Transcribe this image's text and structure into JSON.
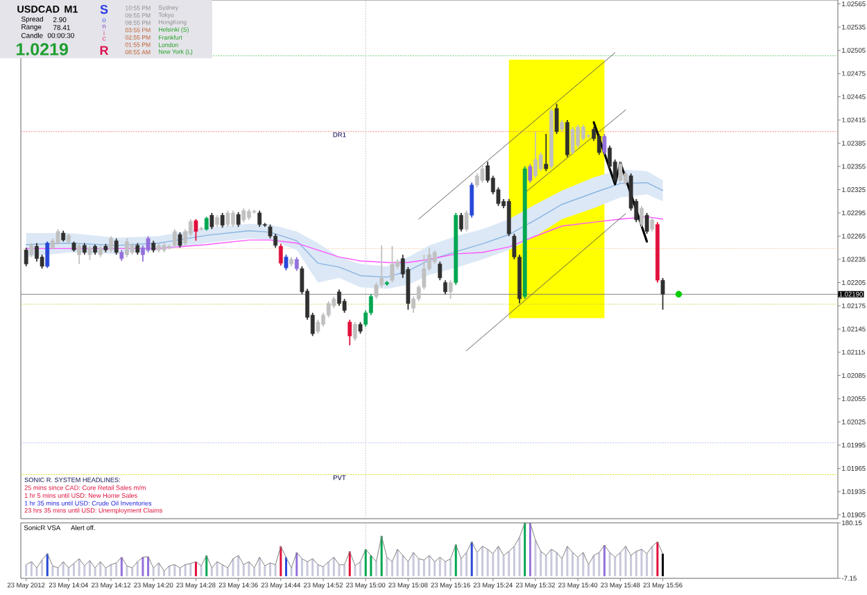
{
  "chart_data": [
    {
      "type": "candlestick",
      "x": [
        "2012-05-23T13:56",
        "2012-05-23T13:57",
        "2012-05-23T13:58",
        "2012-05-23T13:59",
        "2012-05-23T14:00",
        "2012-05-23T14:01",
        "2012-05-23T14:02",
        "2012-05-23T14:03",
        "2012-05-23T14:04",
        "2012-05-23T14:05",
        "2012-05-23T14:06",
        "2012-05-23T14:07",
        "2012-05-23T14:08",
        "2012-05-23T14:09",
        "2012-05-23T14:10",
        "2012-05-23T14:11",
        "2012-05-23T14:12",
        "2012-05-23T14:13",
        "2012-05-23T14:14",
        "2012-05-23T14:15",
        "2012-05-23T14:16",
        "2012-05-23T14:17",
        "2012-05-23T14:18",
        "2012-05-23T14:19",
        "2012-05-23T14:20",
        "2012-05-23T14:21",
        "2012-05-23T14:22",
        "2012-05-23T14:23",
        "2012-05-23T14:24",
        "2012-05-23T14:25",
        "2012-05-23T14:26",
        "2012-05-23T14:27",
        "2012-05-23T14:28",
        "2012-05-23T14:29",
        "2012-05-23T14:30",
        "2012-05-23T14:31",
        "2012-05-23T14:32",
        "2012-05-23T14:33",
        "2012-05-23T14:34",
        "2012-05-23T14:35",
        "2012-05-23T14:36",
        "2012-05-23T14:37",
        "2012-05-23T14:38",
        "2012-05-23T14:39",
        "2012-05-23T14:40",
        "2012-05-23T14:41",
        "2012-05-23T14:42",
        "2012-05-23T14:43",
        "2012-05-23T14:44",
        "2012-05-23T14:45",
        "2012-05-23T14:46",
        "2012-05-23T14:47",
        "2012-05-23T14:48",
        "2012-05-23T14:49",
        "2012-05-23T14:50",
        "2012-05-23T14:51",
        "2012-05-23T14:52",
        "2012-05-23T14:53",
        "2012-05-23T14:54",
        "2012-05-23T14:55",
        "2012-05-23T14:56",
        "2012-05-23T14:57",
        "2012-05-23T14:58",
        "2012-05-23T14:59",
        "2012-05-23T15:00",
        "2012-05-23T15:01",
        "2012-05-23T15:02",
        "2012-05-23T15:03",
        "2012-05-23T15:04",
        "2012-05-23T15:05",
        "2012-05-23T15:06",
        "2012-05-23T15:07",
        "2012-05-23T15:08",
        "2012-05-23T15:09",
        "2012-05-23T15:10",
        "2012-05-23T15:11",
        "2012-05-23T15:12",
        "2012-05-23T15:13",
        "2012-05-23T15:14",
        "2012-05-23T15:15",
        "2012-05-23T15:16",
        "2012-05-23T15:17",
        "2012-05-23T15:18",
        "2012-05-23T15:19",
        "2012-05-23T15:20",
        "2012-05-23T15:21",
        "2012-05-23T15:22",
        "2012-05-23T15:23",
        "2012-05-23T15:24",
        "2012-05-23T15:25",
        "2012-05-23T15:26",
        "2012-05-23T15:27",
        "2012-05-23T15:28",
        "2012-05-23T15:29",
        "2012-05-23T15:30",
        "2012-05-23T15:31",
        "2012-05-23T15:32",
        "2012-05-23T15:33",
        "2012-05-23T15:34",
        "2012-05-23T15:35",
        "2012-05-23T15:36",
        "2012-05-23T15:37",
        "2012-05-23T15:38",
        "2012-05-23T15:39",
        "2012-05-23T15:40",
        "2012-05-23T15:41",
        "2012-05-23T15:42",
        "2012-05-23T15:43",
        "2012-05-23T15:44",
        "2012-05-23T15:45",
        "2012-05-23T15:46",
        "2012-05-23T15:47",
        "2012-05-23T15:48",
        "2012-05-23T15:49",
        "2012-05-23T15:50",
        "2012-05-23T15:51",
        "2012-05-23T15:52",
        "2012-05-23T15:53",
        "2012-05-23T15:54",
        "2012-05-23T15:55",
        "2012-05-23T15:56"
      ],
      "ohlc": [
        [
          1.02247,
          1.0225,
          1.02226,
          1.02229
        ],
        [
          1.02241,
          1.02256,
          1.02238,
          1.02253
        ],
        [
          1.02252,
          1.02256,
          1.02232,
          1.02236
        ],
        [
          1.02238,
          1.02241,
          1.02223,
          1.02226
        ],
        [
          1.02226,
          1.02258,
          1.02224,
          1.02256
        ],
        [
          1.0225,
          1.02262,
          1.02248,
          1.02259
        ],
        [
          1.02256,
          1.02274,
          1.02254,
          1.02271
        ],
        [
          1.02269,
          1.02272,
          1.02258,
          1.0226
        ],
        [
          1.02258,
          1.02268,
          1.02256,
          1.02266
        ],
        [
          1.02256,
          1.02258,
          1.02245,
          1.02247
        ],
        [
          1.02241,
          1.02256,
          1.02229,
          1.02253
        ],
        [
          1.02253,
          1.02256,
          1.02241,
          1.02244
        ],
        [
          1.02241,
          1.02253,
          1.02234,
          1.0225
        ],
        [
          1.02252,
          1.02254,
          1.02241,
          1.02244
        ],
        [
          1.02241,
          1.02253,
          1.02238,
          1.0225
        ],
        [
          1.02252,
          1.02255,
          1.02244,
          1.02247
        ],
        [
          1.02247,
          1.02265,
          1.02244,
          1.02262
        ],
        [
          1.02259,
          1.02262,
          1.02241,
          1.02244
        ],
        [
          1.02244,
          1.02247,
          1.02233,
          1.02236
        ],
        [
          1.02241,
          1.02262,
          1.02238,
          1.02258
        ],
        [
          1.02244,
          1.02256,
          1.02241,
          1.02253
        ],
        [
          1.02253,
          1.02256,
          1.02241,
          1.02244
        ],
        [
          1.02241,
          1.02253,
          1.02232,
          1.0225
        ],
        [
          1.02247,
          1.02265,
          1.02244,
          1.02262
        ],
        [
          1.02256,
          1.02259,
          1.02244,
          1.02247
        ],
        [
          1.02247,
          1.02256,
          1.02244,
          1.02253
        ],
        [
          1.02247,
          1.02256,
          1.02244,
          1.02253
        ],
        [
          1.0225,
          1.02254,
          1.02248,
          1.02252
        ],
        [
          1.02253,
          1.02274,
          1.0225,
          1.02271
        ],
        [
          1.02267,
          1.0227,
          1.0225,
          1.02253
        ],
        [
          1.02256,
          1.02274,
          1.02253,
          1.02271
        ],
        [
          1.02268,
          1.02287,
          1.02265,
          1.02284
        ],
        [
          1.02285,
          1.02287,
          1.02259,
          1.02271
        ],
        [
          1.02274,
          1.02277,
          1.02272,
          1.02275
        ],
        [
          1.02274,
          1.0229,
          1.02272,
          1.02288
        ],
        [
          1.02292,
          1.02295,
          1.02274,
          1.02277
        ],
        [
          1.0228,
          1.02292,
          1.02277,
          1.02289
        ],
        [
          1.02292,
          1.02295,
          1.02276,
          1.02279
        ],
        [
          1.0228,
          1.02298,
          1.02277,
          1.02295
        ],
        [
          1.0228,
          1.02298,
          1.02277,
          1.02295
        ],
        [
          1.02293,
          1.02296,
          1.02277,
          1.0228
        ],
        [
          1.02286,
          1.02301,
          1.02283,
          1.02298
        ],
        [
          1.02289,
          1.023,
          1.02286,
          1.02297
        ],
        [
          1.02296,
          1.02299,
          1.02294,
          1.02297
        ],
        [
          1.02295,
          1.02298,
          1.02277,
          1.0228
        ],
        [
          1.0228,
          1.02282,
          1.02277,
          1.02279
        ],
        [
          1.02277,
          1.0228,
          1.02262,
          1.02265
        ],
        [
          1.02265,
          1.02268,
          1.0225,
          1.02253
        ],
        [
          1.02252,
          1.02255,
          1.02227,
          1.0223
        ],
        [
          1.02224,
          1.02241,
          1.02221,
          1.02238
        ],
        [
          1.02229,
          1.02238,
          1.02226,
          1.02235
        ],
        [
          1.02235,
          1.02238,
          1.0222,
          1.02223
        ],
        [
          1.02223,
          1.02226,
          1.0219,
          1.02193
        ],
        [
          1.02194,
          1.02197,
          1.02157,
          1.0216
        ],
        [
          1.02163,
          1.02166,
          1.02136,
          1.02139
        ],
        [
          1.02142,
          1.02157,
          1.02139,
          1.02154
        ],
        [
          1.02151,
          1.02166,
          1.02148,
          1.02163
        ],
        [
          1.02163,
          1.02181,
          1.0216,
          1.02178
        ],
        [
          1.02175,
          1.02187,
          1.02172,
          1.02184
        ],
        [
          1.02193,
          1.02196,
          1.02175,
          1.02178
        ],
        [
          1.02181,
          1.02184,
          1.02166,
          1.02169
        ],
        [
          1.02154,
          1.02157,
          1.02124,
          1.02136
        ],
        [
          1.02133,
          1.02154,
          1.0213,
          1.02151
        ],
        [
          1.02151,
          1.02154,
          1.02139,
          1.02142
        ],
        [
          1.02151,
          1.02169,
          1.02148,
          1.02166
        ],
        [
          1.02166,
          1.0219,
          1.02163,
          1.02187
        ],
        [
          1.02187,
          1.02205,
          1.02184,
          1.02202
        ],
        [
          1.02202,
          1.02253,
          1.02199,
          1.02211
        ],
        [
          1.02203,
          1.02207,
          1.02201,
          1.02205
        ],
        [
          1.02208,
          1.02252,
          1.02205,
          1.02229
        ],
        [
          1.02226,
          1.02235,
          1.02223,
          1.02232
        ],
        [
          1.02236,
          1.02241,
          1.02211,
          1.02216
        ],
        [
          1.02222,
          1.02225,
          1.0217,
          1.02178
        ],
        [
          1.02172,
          1.02187,
          1.02166,
          1.02184
        ],
        [
          1.02184,
          1.02202,
          1.02181,
          1.02199
        ],
        [
          1.02199,
          1.02241,
          1.02196,
          1.02223
        ],
        [
          1.02223,
          1.0225,
          1.0222,
          1.02241
        ],
        [
          1.02232,
          1.02247,
          1.02229,
          1.02244
        ],
        [
          1.02229,
          1.02232,
          1.02208,
          1.02211
        ],
        [
          1.02205,
          1.02208,
          1.0219,
          1.02193
        ],
        [
          1.02193,
          1.02208,
          1.02184,
          1.02205
        ],
        [
          1.02205,
          1.02295,
          1.02202,
          1.02292
        ],
        [
          1.02292,
          1.02295,
          1.02271,
          1.02274
        ],
        [
          1.02274,
          1.02298,
          1.02271,
          1.02295
        ],
        [
          1.02292,
          1.02334,
          1.02289,
          1.02331
        ],
        [
          1.02331,
          1.02346,
          1.02328,
          1.02343
        ],
        [
          1.02337,
          1.02358,
          1.02334,
          1.02352
        ],
        [
          1.02356,
          1.02361,
          1.02334,
          1.02337
        ],
        [
          1.0234,
          1.02343,
          1.02319,
          1.02322
        ],
        [
          1.02325,
          1.02328,
          1.02304,
          1.02307
        ],
        [
          1.0231,
          1.02313,
          1.02301,
          1.02304
        ],
        [
          1.0231,
          1.02313,
          1.02265,
          1.02268
        ],
        [
          1.02265,
          1.02268,
          1.02235,
          1.02238
        ],
        [
          1.02238,
          1.02241,
          1.02178,
          1.02184
        ],
        [
          1.02187,
          1.02355,
          1.02184,
          1.02352
        ],
        [
          1.02337,
          1.02358,
          1.02334,
          1.02355
        ],
        [
          1.02343,
          1.024,
          1.0234,
          1.02364
        ],
        [
          1.02352,
          1.02373,
          1.02349,
          1.0237
        ],
        [
          1.02358,
          1.02397,
          1.02349,
          1.02352
        ],
        [
          1.02355,
          1.0243,
          1.02352,
          1.02427
        ],
        [
          1.0243,
          1.02436,
          1.02397,
          1.024
        ],
        [
          1.02403,
          1.02415,
          1.024,
          1.02412
        ],
        [
          1.02412,
          1.02415,
          1.02367,
          1.0237
        ],
        [
          1.02373,
          1.02406,
          1.0237,
          1.02403
        ],
        [
          1.02382,
          1.02409,
          1.02379,
          1.02406
        ],
        [
          1.02391,
          1.02409,
          1.02388,
          1.02406
        ],
        [
          1.02394,
          1.02397,
          1.02392,
          1.02395
        ],
        [
          1.02403,
          1.02406,
          1.02388,
          1.02391
        ],
        [
          1.02394,
          1.02397,
          1.0237,
          1.02373
        ],
        [
          1.02394,
          1.02397,
          1.0237,
          1.02373
        ],
        [
          1.02379,
          1.02382,
          1.02352,
          1.02355
        ],
        [
          1.02361,
          1.02364,
          1.02334,
          1.02337
        ],
        [
          1.02337,
          1.02361,
          1.02334,
          1.02358
        ],
        [
          1.02334,
          1.02349,
          1.02331,
          1.02346
        ],
        [
          1.02343,
          1.02346,
          1.02298,
          1.02301
        ],
        [
          1.0231,
          1.02313,
          1.02283,
          1.02286
        ],
        [
          1.0228,
          1.02304,
          1.02277,
          1.02301
        ],
        [
          1.02292,
          1.02295,
          1.02268,
          1.02271
        ],
        [
          1.02274,
          1.02289,
          1.02271,
          1.02286
        ],
        [
          1.0228,
          1.02283,
          1.02205,
          1.02208
        ],
        [
          1.02208,
          1.02211,
          1.0217,
          1.0219
        ]
      ],
      "colors": [
        "#303030",
        "#c0c0c0",
        "#303030",
        "#303030",
        "#2848d8",
        "#c0c0c0",
        "#c0c0c0",
        "#303030",
        "#c0c0c0",
        "#303030",
        "#c0c0c0",
        "#303030",
        "#c0c0c0",
        "#303030",
        "#c0c0c0",
        "#303030",
        "#c0c0c0",
        "#303030",
        "#9370db",
        "#c0c0c0",
        "#c0c0c0",
        "#303030",
        "#9370db",
        "#9370db",
        "#303030",
        "#c0c0c0",
        "#c0c0c0",
        "#c0c0c0",
        "#c0c0c0",
        "#303030",
        "#c0c0c0",
        "#c0c0c0",
        "#e0103c",
        "#c0c0c0",
        "#00a651",
        "#303030",
        "#c0c0c0",
        "#303030",
        "#c0c0c0",
        "#c0c0c0",
        "#303030",
        "#c0c0c0",
        "#c0c0c0",
        "#c0c0c0",
        "#303030",
        "#303030",
        "#303030",
        "#303030",
        "#e0103c",
        "#2848d8",
        "#c0c0c0",
        "#9370db",
        "#303030",
        "#303030",
        "#303030",
        "#c0c0c0",
        "#c0c0c0",
        "#c0c0c0",
        "#c0c0c0",
        "#303030",
        "#303030",
        "#e0103c",
        "#c0c0c0",
        "#303030",
        "#00a651",
        "#00a651",
        "#c0c0c0",
        "#c0c0c0",
        "#00a651",
        "#c0c0c0",
        "#c0c0c0",
        "#303030",
        "#303030",
        "#c0c0c0",
        "#c0c0c0",
        "#c0c0c0",
        "#c0c0c0",
        "#c0c0c0",
        "#303030",
        "#303030",
        "#c0c0c0",
        "#00a651",
        "#303030",
        "#c0c0c0",
        "#2848d8",
        "#c0c0c0",
        "#c0c0c0",
        "#303030",
        "#303030",
        "#303030",
        "#303030",
        "#303030",
        "#303030",
        "#303030",
        "#00a651",
        "#9370db",
        "#c0c0c0",
        "#c0c0c0",
        "#303030",
        "#c0c0c0",
        "#303030",
        "#c0c0c0",
        "#303030",
        "#c0c0c0",
        "#c0c0c0",
        "#c0c0c0",
        "#c0c0c0",
        "#303030",
        "#303030",
        "#9370db",
        "#303030",
        "#303030",
        "#c0c0c0",
        "#c0c0c0",
        "#303030",
        "#303030",
        "#c0c0c0",
        "#303030",
        "#c0c0c0",
        "#e0103c",
        "#303030"
      ],
      "xlim": [
        "2012-05-23T13:55",
        "2012-05-23T16:29"
      ],
      "ylim": [
        1.019,
        1.0257
      ],
      "yticks": [
        1.01905,
        1.01935,
        1.01965,
        1.01995,
        1.02025,
        1.02055,
        1.02085,
        1.02115,
        1.02145,
        1.02175,
        1.02205,
        1.02235,
        1.02265,
        1.02295,
        1.02325,
        1.02355,
        1.02385,
        1.02415,
        1.02445,
        1.02475,
        1.02505,
        1.02535,
        1.02565
      ],
      "tick_labels": "y",
      "series": [
        {
          "type": "area",
          "color": "#ffff00",
          "x": [
            "2012-05-23T15:27",
            "2012-05-23T15:45"
          ],
          "values": [
            null,
            null
          ],
          "lower": [
            1.02159,
            1.02159
          ],
          "upper": [
            1.02493,
            1.02493
          ]
        },
        {
          "type": "line",
          "color": "#8ab4e0",
          "x": [
            "2012-05-23T13:56",
            "2012-05-23T14:04",
            "2012-05-23T14:13",
            "2012-05-23T14:21",
            "2012-05-23T14:30",
            "2012-05-23T14:38",
            "2012-05-23T14:42",
            "2012-05-23T14:47",
            "2012-05-23T14:51",
            "2012-05-23T14:55",
            "2012-05-23T14:59",
            "2012-05-23T15:04",
            "2012-05-23T15:08",
            "2012-05-23T15:12",
            "2012-05-23T15:17",
            "2012-05-23T15:22",
            "2012-05-23T15:27",
            "2012-05-23T15:32",
            "2012-05-23T15:37",
            "2012-05-23T15:43",
            "2012-05-23T15:48",
            "2012-05-23T15:53",
            "2012-05-23T15:56"
          ],
          "values": [
            1.02254,
            1.02256,
            1.02253,
            1.02256,
            1.02266,
            1.02272,
            1.0227,
            1.02259,
            1.0223,
            1.02225,
            1.02214,
            1.02212,
            1.0222,
            1.02234,
            1.02245,
            1.02255,
            1.02267,
            1.02286,
            1.02306,
            1.02321,
            1.02333,
            1.02334,
            1.02324
          ],
          "lower": [
            1.02238,
            1.02244,
            1.02242,
            1.02247,
            1.02256,
            1.02262,
            1.0226,
            1.02247,
            1.02205,
            1.02211,
            1.02199,
            1.02197,
            1.02202,
            1.02215,
            1.02224,
            1.02235,
            1.02247,
            1.02265,
            1.02287,
            1.02301,
            1.02315,
            1.02319,
            1.0231
          ],
          "upper": [
            1.02269,
            1.02269,
            1.02263,
            1.02265,
            1.02276,
            1.02281,
            1.0228,
            1.02271,
            1.02256,
            1.02238,
            1.02229,
            1.02226,
            1.02238,
            1.02253,
            1.02265,
            1.02274,
            1.02287,
            1.02306,
            1.02324,
            1.02341,
            1.02351,
            1.02349,
            1.02337
          ]
        },
        {
          "type": "line",
          "color": "#ff55ff",
          "x": [
            "2012-05-23T13:56",
            "2012-05-23T14:04",
            "2012-05-23T14:13",
            "2012-05-23T14:21",
            "2012-05-23T14:30",
            "2012-05-23T14:38",
            "2012-05-23T14:42",
            "2012-05-23T14:47",
            "2012-05-23T14:51",
            "2012-05-23T14:55",
            "2012-05-23T14:59",
            "2012-05-23T15:04",
            "2012-05-23T15:08",
            "2012-05-23T15:12",
            "2012-05-23T15:17",
            "2012-05-23T15:22",
            "2012-05-23T15:27",
            "2012-05-23T15:32",
            "2012-05-23T15:37",
            "2012-05-23T15:43",
            "2012-05-23T15:48",
            "2012-05-23T15:53",
            "2012-05-23T15:56"
          ],
          "values": [
            1.02249,
            1.02249,
            1.02249,
            1.02249,
            1.02254,
            1.0226,
            1.0226,
            1.02256,
            1.02247,
            1.02238,
            1.02233,
            1.02231,
            1.02231,
            1.02235,
            1.02242,
            1.02244,
            1.02251,
            1.02265,
            1.02278,
            1.02283,
            1.02287,
            1.0229,
            1.02287
          ]
        },
        {
          "type": "line",
          "color": "#505050",
          "x": [
            "2012-05-23T15:10",
            "2012-05-23T15:47"
          ],
          "values": [
            1.02287,
            1.02502
          ]
        },
        {
          "type": "line",
          "color": "#505050",
          "x": [
            "2012-05-23T15:30",
            "2012-05-23T15:49"
          ],
          "values": [
            1.02321,
            1.02428
          ]
        },
        {
          "type": "line",
          "color": "#505050",
          "x": [
            "2012-05-23T15:19",
            "2012-05-23T15:49"
          ],
          "values": [
            1.02117,
            1.02294
          ]
        },
        {
          "type": "line",
          "color": "#000000",
          "x": [
            "2012-05-23T15:43",
            "2012-05-23T15:47",
            "2012-05-23T15:48",
            "2012-05-23T15:53"
          ],
          "values": [
            1.02412,
            1.02332,
            1.0236,
            1.02258
          ]
        },
        {
          "type": "scatter",
          "color": "#00cc00",
          "marker": "circle",
          "x": [
            "2012-05-23T15:59"
          ],
          "values": [
            1.0219
          ]
        }
      ],
      "ref_lines": [
        {
          "axis": "y",
          "value": 1.02498,
          "color": "#66cc66",
          "line_style": "dotted"
        },
        {
          "axis": "y",
          "value": 1.024,
          "label": "DR1",
          "color": "#ff7070",
          "line_style": "dotted"
        },
        {
          "axis": "y",
          "value": 1.02249,
          "color": "#f5c8a0",
          "line_style": "dotted"
        },
        {
          "axis": "y",
          "value": 1.0219,
          "label": "1.02190",
          "color": "#707070",
          "line_style": "solid"
        },
        {
          "axis": "y",
          "value": 1.02177,
          "color": "#c8c850",
          "line_style": "dotted"
        },
        {
          "axis": "y",
          "value": 1.01998,
          "color": "#b0c0f0",
          "line_style": "dotted"
        },
        {
          "axis": "y",
          "value": 1.01957,
          "label": "PVT",
          "color": "#d8d800",
          "line_style": "dotted"
        },
        {
          "axis": "x",
          "value": "2012-05-23T15:00",
          "color": "#c0c0c0",
          "line_style": "dotted"
        }
      ],
      "annotations": [
        "SONIC R. SYSTEM  HEADLINES:",
        "25 mins since CAD: Core Retail Sales m/m",
        "1 hr 5 mins until USD: New Home Sales",
        "1 hr 35 mins until USD: Crude Oil Inventories",
        "23 hrs 35 mins until USD: Unemployment Claims"
      ]
    },
    {
      "type": "bar",
      "title": "SonicR VSA",
      "subtitle": "Alert off.",
      "x": [
        "2012-05-23T13:56",
        "2012-05-23T13:57",
        "2012-05-23T13:58",
        "2012-05-23T13:59",
        "2012-05-23T14:00",
        "2012-05-23T14:01",
        "2012-05-23T14:02",
        "2012-05-23T14:03",
        "2012-05-23T14:04",
        "2012-05-23T14:05",
        "2012-05-23T14:06",
        "2012-05-23T14:07",
        "2012-05-23T14:08",
        "2012-05-23T14:09",
        "2012-05-23T14:10",
        "2012-05-23T14:11",
        "2012-05-23T14:12",
        "2012-05-23T14:13",
        "2012-05-23T14:14",
        "2012-05-23T14:15",
        "2012-05-23T14:16",
        "2012-05-23T14:17",
        "2012-05-23T14:18",
        "2012-05-23T14:19",
        "2012-05-23T14:20",
        "2012-05-23T14:21",
        "2012-05-23T14:22",
        "2012-05-23T14:23",
        "2012-05-23T14:24",
        "2012-05-23T14:25",
        "2012-05-23T14:26",
        "2012-05-23T14:27",
        "2012-05-23T14:28",
        "2012-05-23T14:29",
        "2012-05-23T14:30",
        "2012-05-23T14:31",
        "2012-05-23T14:32",
        "2012-05-23T14:33",
        "2012-05-23T14:34",
        "2012-05-23T14:35",
        "2012-05-23T14:36",
        "2012-05-23T14:37",
        "2012-05-23T14:38",
        "2012-05-23T14:39",
        "2012-05-23T14:40",
        "2012-05-23T14:41",
        "2012-05-23T14:42",
        "2012-05-23T14:43",
        "2012-05-23T14:44",
        "2012-05-23T14:45",
        "2012-05-23T14:46",
        "2012-05-23T14:47",
        "2012-05-23T14:48",
        "2012-05-23T14:49",
        "2012-05-23T14:50",
        "2012-05-23T14:51",
        "2012-05-23T14:52",
        "2012-05-23T14:53",
        "2012-05-23T14:54",
        "2012-05-23T14:55",
        "2012-05-23T14:56",
        "2012-05-23T14:57",
        "2012-05-23T14:58",
        "2012-05-23T14:59",
        "2012-05-23T15:00",
        "2012-05-23T15:01",
        "2012-05-23T15:02",
        "2012-05-23T15:03",
        "2012-05-23T15:04",
        "2012-05-23T15:05",
        "2012-05-23T15:06",
        "2012-05-23T15:07",
        "2012-05-23T15:08",
        "2012-05-23T15:09",
        "2012-05-23T15:10",
        "2012-05-23T15:11",
        "2012-05-23T15:12",
        "2012-05-23T15:13",
        "2012-05-23T15:14",
        "2012-05-23T15:15",
        "2012-05-23T15:16",
        "2012-05-23T15:17",
        "2012-05-23T15:18",
        "2012-05-23T15:19",
        "2012-05-23T15:20",
        "2012-05-23T15:21",
        "2012-05-23T15:22",
        "2012-05-23T15:23",
        "2012-05-23T15:24",
        "2012-05-23T15:25",
        "2012-05-23T15:26",
        "2012-05-23T15:27",
        "2012-05-23T15:28",
        "2012-05-23T15:29",
        "2012-05-23T15:30",
        "2012-05-23T15:31",
        "2012-05-23T15:32",
        "2012-05-23T15:33",
        "2012-05-23T15:34",
        "2012-05-23T15:35",
        "2012-05-23T15:36",
        "2012-05-23T15:37",
        "2012-05-23T15:38",
        "2012-05-23T15:39",
        "2012-05-23T15:40",
        "2012-05-23T15:41",
        "2012-05-23T15:42",
        "2012-05-23T15:43",
        "2012-05-23T15:44",
        "2012-05-23T15:45",
        "2012-05-23T15:46",
        "2012-05-23T15:47",
        "2012-05-23T15:48",
        "2012-05-23T15:49",
        "2012-05-23T15:50",
        "2012-05-23T15:51",
        "2012-05-23T15:52",
        "2012-05-23T15:53",
        "2012-05-23T15:54",
        "2012-05-23T15:55",
        "2012-05-23T15:56"
      ],
      "xlim": [
        "2012-05-23T13:55",
        "2012-05-23T16:29"
      ],
      "ylim": [
        -7.15,
        180.15
      ],
      "xticks": [
        {
          "value": "2012-05-23T13:56",
          "label": "23 May 2012"
        },
        {
          "value": "2012-05-23T14:04",
          "label": "23 May 14:04"
        },
        {
          "value": "2012-05-23T14:12",
          "label": "23 May 14:12"
        },
        {
          "value": "2012-05-23T14:20",
          "label": "23 May 14:20"
        },
        {
          "value": "2012-05-23T14:28",
          "label": "23 May 14:28"
        },
        {
          "value": "2012-05-23T14:36",
          "label": "23 May 14:36"
        },
        {
          "value": "2012-05-23T14:44",
          "label": "23 May 14:44"
        },
        {
          "value": "2012-05-23T14:52",
          "label": "23 May 14:52"
        },
        {
          "value": "2012-05-23T15:00",
          "label": "23 May 15:00"
        },
        {
          "value": "2012-05-23T15:08",
          "label": "23 May 15:08"
        },
        {
          "value": "2012-05-23T15:16",
          "label": "23 May 15:16"
        },
        {
          "value": "2012-05-23T15:24",
          "label": "23 May 15:24"
        },
        {
          "value": "2012-05-23T15:32",
          "label": "23 May 15:32"
        },
        {
          "value": "2012-05-23T15:40",
          "label": "23 May 15:40"
        },
        {
          "value": "2012-05-23T15:48",
          "label": "23 May 15:48"
        },
        {
          "value": "2012-05-23T15:56",
          "label": "23 May 15:56"
        }
      ],
      "yticks": [
        -7.15,
        180.15
      ],
      "series": [
        {
          "type": "bar",
          "colors": [
            "#c8c8dc",
            "#c8c8dc",
            "#c8c8dc",
            "#c8c8dc",
            "#2848d8",
            "#c8c8dc",
            "#c8c8dc",
            "#c8c8dc",
            "#c8c8dc",
            "#c8c8dc",
            "#c8c8dc",
            "#c8c8dc",
            "#c8c8dc",
            "#c8c8dc",
            "#c8c8dc",
            "#c8c8dc",
            "#c8c8dc",
            "#c8c8dc",
            "#9370db",
            "#c8c8dc",
            "#c8c8dc",
            "#c8c8dc",
            "#9370db",
            "#9370db",
            "#c8c8dc",
            "#c8c8dc",
            "#c8c8dc",
            "#c8c8dc",
            "#c8c8dc",
            "#c8c8dc",
            "#c8c8dc",
            "#c8c8dc",
            "#e0103c",
            "#c8c8dc",
            "#00a651",
            "#c8c8dc",
            "#c8c8dc",
            "#c8c8dc",
            "#c8c8dc",
            "#c8c8dc",
            "#c8c8dc",
            "#c8c8dc",
            "#c8c8dc",
            "#c8c8dc",
            "#c8c8dc",
            "#c8c8dc",
            "#c8c8dc",
            "#c8c8dc",
            "#e0103c",
            "#2848d8",
            "#c8c8dc",
            "#9370db",
            "#c8c8dc",
            "#c8c8dc",
            "#c8c8dc",
            "#c8c8dc",
            "#c8c8dc",
            "#c8c8dc",
            "#c8c8dc",
            "#c8c8dc",
            "#c8c8dc",
            "#e0103c",
            "#c8c8dc",
            "#c8c8dc",
            "#00a651",
            "#00a651",
            "#c8c8dc",
            "#00a651",
            "#c8c8dc",
            "#c8c8dc",
            "#c8c8dc",
            "#c8c8dc",
            "#c8c8dc",
            "#c8c8dc",
            "#c8c8dc",
            "#c8c8dc",
            "#c8c8dc",
            "#c8c8dc",
            "#c8c8dc",
            "#c8c8dc",
            "#c8c8dc",
            "#00a651",
            "#c8c8dc",
            "#c8c8dc",
            "#2848d8",
            "#c8c8dc",
            "#c8c8dc",
            "#c8c8dc",
            "#c8c8dc",
            "#c8c8dc",
            "#c8c8dc",
            "#c8c8dc",
            "#c8c8dc",
            "#c8c8dc",
            "#00a651",
            "#9370db",
            "#c8c8dc",
            "#c8c8dc",
            "#c8c8dc",
            "#c8c8dc",
            "#c8c8dc",
            "#c8c8dc",
            "#c8c8dc",
            "#c8c8dc",
            "#c8c8dc",
            "#c8c8dc",
            "#c8c8dc",
            "#c8c8dc",
            "#c8c8dc",
            "#9370db",
            "#c8c8dc",
            "#c8c8dc",
            "#c8c8dc",
            "#c8c8dc",
            "#c8c8dc",
            "#c8c8dc",
            "#c8c8dc",
            "#c8c8dc",
            "#c8c8dc",
            "#e0103c",
            "#000000"
          ],
          "values": [
            39,
            49,
            28,
            55,
            76,
            35,
            28,
            49,
            28,
            43,
            59,
            35,
            53,
            28,
            49,
            28,
            39,
            45,
            64,
            35,
            28,
            49,
            64,
            66,
            28,
            45,
            18,
            35,
            39,
            28,
            39,
            43,
            49,
            35,
            70,
            28,
            49,
            39,
            28,
            59,
            70,
            39,
            49,
            28,
            64,
            35,
            45,
            39,
            101,
            64,
            28,
            80,
            59,
            49,
            59,
            39,
            32,
            49,
            64,
            39,
            39,
            84,
            35,
            49,
            91,
            70,
            49,
            136,
            64,
            49,
            91,
            70,
            49,
            80,
            59,
            55,
            70,
            49,
            64,
            49,
            59,
            107,
            59,
            80,
            116,
            80,
            101,
            91,
            76,
            101,
            70,
            84,
            101,
            132,
            180,
            180,
            122,
            84,
            70,
            91,
            80,
            59,
            101,
            80,
            64,
            80,
            39,
            70,
            80,
            105,
            80,
            64,
            80,
            101,
            70,
            84,
            91,
            76,
            101,
            116,
            76
          ]
        },
        {
          "type": "line",
          "color": "#808080",
          "values": [
            39,
            49,
            28,
            55,
            76,
            35,
            28,
            49,
            28,
            43,
            59,
            35,
            53,
            28,
            49,
            28,
            39,
            45,
            64,
            35,
            28,
            49,
            64,
            66,
            28,
            45,
            18,
            35,
            39,
            28,
            39,
            43,
            49,
            35,
            70,
            28,
            49,
            39,
            28,
            59,
            70,
            39,
            49,
            28,
            64,
            35,
            45,
            39,
            101,
            64,
            28,
            80,
            59,
            49,
            59,
            39,
            32,
            49,
            64,
            39,
            39,
            84,
            35,
            49,
            91,
            70,
            49,
            136,
            64,
            49,
            91,
            70,
            49,
            80,
            59,
            55,
            70,
            49,
            64,
            49,
            59,
            107,
            59,
            80,
            116,
            80,
            101,
            91,
            76,
            101,
            70,
            84,
            101,
            132,
            180,
            180,
            122,
            84,
            70,
            91,
            80,
            59,
            101,
            80,
            64,
            80,
            39,
            70,
            80,
            105,
            80,
            64,
            80,
            101,
            70,
            84,
            91,
            76,
            101,
            116,
            76
          ]
        }
      ],
      "ref_lines": [
        {
          "axis": "x",
          "value": "2012-05-23T15:00",
          "color": "#c0c0c0",
          "line_style": "dotted"
        }
      ]
    },
    {
      "type": "other",
      "annotations": [
        "USDCAD",
        "M1",
        "Spread",
        "2.90",
        "Range",
        "78.41",
        "Candle",
        "00:00:30",
        "1.0219",
        "S",
        "o",
        "n",
        "i",
        "c",
        "R",
        "10:55 PM",
        "Sydney",
        "09:55 PM",
        "Tokyo",
        "08:55 PM",
        "HongKong",
        "03:55 PM",
        "Helsinki (S)",
        "02:55 PM",
        "Frankfurt",
        "01:55 PM",
        "London",
        "08:55 AM",
        "New York (L)"
      ]
    }
  ]
}
